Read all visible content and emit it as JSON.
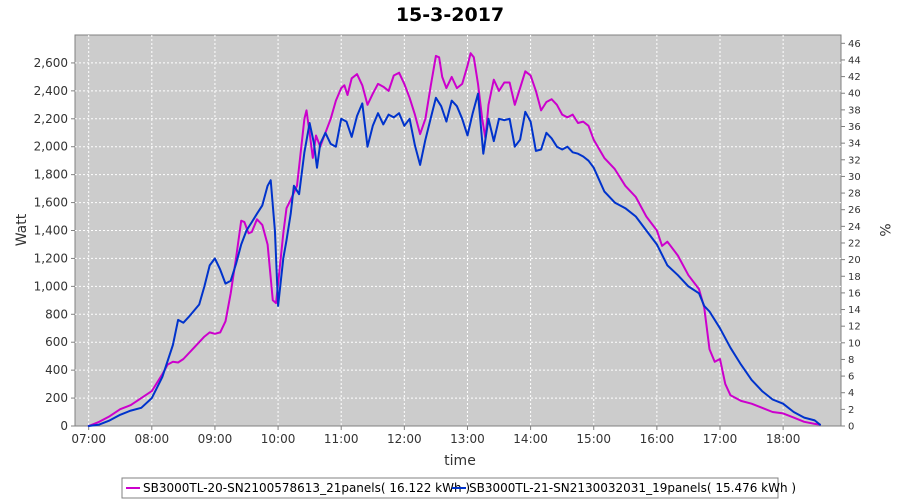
{
  "chart_data": {
    "type": "line",
    "title": "15-3-2017",
    "xlabel": "time",
    "ylabel": "Watt",
    "y2label": "%",
    "x_tick_labels": [
      "07:00",
      "08:00",
      "09:00",
      "10:00",
      "11:00",
      "12:00",
      "13:00",
      "14:00",
      "15:00",
      "16:00",
      "17:00",
      "18:00"
    ],
    "x_range": [
      "06:47",
      "18:55"
    ],
    "ylim": [
      0,
      2800
    ],
    "y_tick_labels": [
      "0",
      "200",
      "400",
      "600",
      "800",
      "1,000",
      "1,200",
      "1,400",
      "1,600",
      "1,800",
      "2,000",
      "2,200",
      "2,400",
      "2,600"
    ],
    "y2lim": [
      0,
      47
    ],
    "y2_tick_labels": [
      "0",
      "2",
      "4",
      "6",
      "8",
      "10",
      "12",
      "14",
      "16",
      "18",
      "20",
      "22",
      "24",
      "26",
      "28",
      "30",
      "32",
      "34",
      "36",
      "38",
      "40",
      "42",
      "44",
      "46"
    ],
    "grid": true,
    "legend_placement": "bottom",
    "plot_background": "#cccccc",
    "series": [
      {
        "name": "SB3000TL-20-SN2100578613_21panels( 16.122 kWh )",
        "color": "#cc00cc",
        "points": [
          [
            "07:00",
            0
          ],
          [
            "07:10",
            30
          ],
          [
            "07:20",
            70
          ],
          [
            "07:30",
            120
          ],
          [
            "07:40",
            150
          ],
          [
            "07:50",
            200
          ],
          [
            "08:00",
            250
          ],
          [
            "08:10",
            370
          ],
          [
            "08:15",
            440
          ],
          [
            "08:20",
            460
          ],
          [
            "08:25",
            455
          ],
          [
            "08:30",
            480
          ],
          [
            "08:40",
            560
          ],
          [
            "08:50",
            640
          ],
          [
            "08:55",
            670
          ],
          [
            "09:00",
            660
          ],
          [
            "09:05",
            670
          ],
          [
            "09:10",
            750
          ],
          [
            "09:15",
            950
          ],
          [
            "09:20",
            1200
          ],
          [
            "09:25",
            1470
          ],
          [
            "09:28",
            1460
          ],
          [
            "09:32",
            1380
          ],
          [
            "09:35",
            1390
          ],
          [
            "09:40",
            1480
          ],
          [
            "09:45",
            1440
          ],
          [
            "09:50",
            1300
          ],
          [
            "09:55",
            900
          ],
          [
            "09:58",
            880
          ],
          [
            "10:00",
            1020
          ],
          [
            "10:05",
            1380
          ],
          [
            "10:08",
            1560
          ],
          [
            "10:12",
            1620
          ],
          [
            "10:18",
            1720
          ],
          [
            "10:25",
            2200
          ],
          [
            "10:27",
            2260
          ],
          [
            "10:30",
            2100
          ],
          [
            "10:33",
            1920
          ],
          [
            "10:36",
            2080
          ],
          [
            "10:40",
            2000
          ],
          [
            "10:45",
            2100
          ],
          [
            "10:50",
            2200
          ],
          [
            "10:55",
            2330
          ],
          [
            "11:00",
            2420
          ],
          [
            "11:03",
            2440
          ],
          [
            "11:06",
            2370
          ],
          [
            "11:10",
            2490
          ],
          [
            "11:15",
            2520
          ],
          [
            "11:20",
            2440
          ],
          [
            "11:25",
            2300
          ],
          [
            "11:30",
            2380
          ],
          [
            "11:35",
            2450
          ],
          [
            "11:40",
            2430
          ],
          [
            "11:45",
            2400
          ],
          [
            "11:50",
            2510
          ],
          [
            "11:55",
            2530
          ],
          [
            "12:00",
            2450
          ],
          [
            "12:05",
            2350
          ],
          [
            "12:10",
            2230
          ],
          [
            "12:15",
            2090
          ],
          [
            "12:20",
            2200
          ],
          [
            "12:25",
            2430
          ],
          [
            "12:30",
            2650
          ],
          [
            "12:33",
            2640
          ],
          [
            "12:36",
            2500
          ],
          [
            "12:40",
            2420
          ],
          [
            "12:45",
            2500
          ],
          [
            "12:50",
            2420
          ],
          [
            "12:55",
            2450
          ],
          [
            "13:00",
            2580
          ],
          [
            "13:03",
            2670
          ],
          [
            "13:06",
            2640
          ],
          [
            "13:10",
            2450
          ],
          [
            "13:14",
            2200
          ],
          [
            "13:17",
            2060
          ],
          [
            "13:20",
            2300
          ],
          [
            "13:25",
            2480
          ],
          [
            "13:30",
            2400
          ],
          [
            "13:35",
            2460
          ],
          [
            "13:40",
            2460
          ],
          [
            "13:45",
            2300
          ],
          [
            "13:50",
            2420
          ],
          [
            "13:55",
            2540
          ],
          [
            "14:00",
            2510
          ],
          [
            "14:05",
            2400
          ],
          [
            "14:10",
            2260
          ],
          [
            "14:15",
            2320
          ],
          [
            "14:20",
            2340
          ],
          [
            "14:25",
            2300
          ],
          [
            "14:30",
            2230
          ],
          [
            "14:35",
            2210
          ],
          [
            "14:40",
            2230
          ],
          [
            "14:45",
            2170
          ],
          [
            "14:50",
            2180
          ],
          [
            "14:55",
            2150
          ],
          [
            "15:00",
            2050
          ],
          [
            "15:10",
            1920
          ],
          [
            "15:20",
            1840
          ],
          [
            "15:30",
            1720
          ],
          [
            "15:40",
            1640
          ],
          [
            "15:50",
            1500
          ],
          [
            "16:00",
            1400
          ],
          [
            "16:05",
            1290
          ],
          [
            "16:10",
            1320
          ],
          [
            "16:20",
            1220
          ],
          [
            "16:30",
            1080
          ],
          [
            "16:40",
            980
          ],
          [
            "16:45",
            850
          ],
          [
            "16:50",
            550
          ],
          [
            "16:55",
            460
          ],
          [
            "17:00",
            480
          ],
          [
            "17:05",
            300
          ],
          [
            "17:10",
            220
          ],
          [
            "17:20",
            180
          ],
          [
            "17:30",
            160
          ],
          [
            "17:40",
            130
          ],
          [
            "17:50",
            100
          ],
          [
            "18:00",
            90
          ],
          [
            "18:10",
            60
          ],
          [
            "18:20",
            30
          ],
          [
            "18:30",
            15
          ],
          [
            "18:35",
            10
          ]
        ]
      },
      {
        "name": "SB3000TL-21-SN2130032031_19panels( 15.476 kWh )",
        "color": "#0033cc",
        "points": [
          [
            "07:00",
            0
          ],
          [
            "07:10",
            10
          ],
          [
            "07:20",
            40
          ],
          [
            "07:30",
            80
          ],
          [
            "07:40",
            110
          ],
          [
            "07:50",
            130
          ],
          [
            "08:00",
            200
          ],
          [
            "08:10",
            350
          ],
          [
            "08:20",
            580
          ],
          [
            "08:25",
            760
          ],
          [
            "08:30",
            740
          ],
          [
            "08:35",
            780
          ],
          [
            "08:45",
            870
          ],
          [
            "08:50",
            1000
          ],
          [
            "08:55",
            1150
          ],
          [
            "09:00",
            1200
          ],
          [
            "09:05",
            1120
          ],
          [
            "09:10",
            1020
          ],
          [
            "09:15",
            1040
          ],
          [
            "09:20",
            1160
          ],
          [
            "09:25",
            1300
          ],
          [
            "09:30",
            1400
          ],
          [
            "09:35",
            1460
          ],
          [
            "09:40",
            1520
          ],
          [
            "09:45",
            1580
          ],
          [
            "09:50",
            1720
          ],
          [
            "09:53",
            1760
          ],
          [
            "09:57",
            1400
          ],
          [
            "10:00",
            860
          ],
          [
            "10:05",
            1200
          ],
          [
            "10:08",
            1330
          ],
          [
            "10:12",
            1520
          ],
          [
            "10:15",
            1720
          ],
          [
            "10:20",
            1660
          ],
          [
            "10:25",
            1960
          ],
          [
            "10:30",
            2170
          ],
          [
            "10:34",
            2030
          ],
          [
            "10:37",
            1850
          ],
          [
            "10:40",
            2020
          ],
          [
            "10:45",
            2100
          ],
          [
            "10:50",
            2020
          ],
          [
            "10:55",
            2000
          ],
          [
            "11:00",
            2200
          ],
          [
            "11:05",
            2180
          ],
          [
            "11:10",
            2070
          ],
          [
            "11:15",
            2220
          ],
          [
            "11:20",
            2310
          ],
          [
            "11:25",
            2000
          ],
          [
            "11:30",
            2150
          ],
          [
            "11:35",
            2240
          ],
          [
            "11:40",
            2160
          ],
          [
            "11:45",
            2230
          ],
          [
            "11:50",
            2210
          ],
          [
            "11:55",
            2240
          ],
          [
            "12:00",
            2150
          ],
          [
            "12:05",
            2200
          ],
          [
            "12:10",
            2010
          ],
          [
            "12:15",
            1870
          ],
          [
            "12:20",
            2050
          ],
          [
            "12:25",
            2200
          ],
          [
            "12:30",
            2350
          ],
          [
            "12:35",
            2290
          ],
          [
            "12:40",
            2180
          ],
          [
            "12:45",
            2330
          ],
          [
            "12:50",
            2290
          ],
          [
            "12:55",
            2200
          ],
          [
            "13:00",
            2080
          ],
          [
            "13:05",
            2240
          ],
          [
            "13:10",
            2380
          ],
          [
            "13:15",
            1950
          ],
          [
            "13:20",
            2200
          ],
          [
            "13:25",
            2040
          ],
          [
            "13:30",
            2200
          ],
          [
            "13:35",
            2190
          ],
          [
            "13:40",
            2200
          ],
          [
            "13:45",
            2000
          ],
          [
            "13:50",
            2050
          ],
          [
            "13:55",
            2250
          ],
          [
            "14:00",
            2180
          ],
          [
            "14:05",
            1970
          ],
          [
            "14:10",
            1980
          ],
          [
            "14:15",
            2100
          ],
          [
            "14:20",
            2060
          ],
          [
            "14:25",
            2000
          ],
          [
            "14:30",
            1980
          ],
          [
            "14:35",
            2000
          ],
          [
            "14:40",
            1960
          ],
          [
            "14:45",
            1950
          ],
          [
            "14:50",
            1930
          ],
          [
            "14:55",
            1900
          ],
          [
            "15:00",
            1850
          ],
          [
            "15:10",
            1680
          ],
          [
            "15:20",
            1600
          ],
          [
            "15:30",
            1560
          ],
          [
            "15:40",
            1500
          ],
          [
            "15:50",
            1400
          ],
          [
            "16:00",
            1300
          ],
          [
            "16:10",
            1150
          ],
          [
            "16:20",
            1080
          ],
          [
            "16:30",
            1000
          ],
          [
            "16:40",
            950
          ],
          [
            "16:45",
            860
          ],
          [
            "16:50",
            820
          ],
          [
            "17:00",
            700
          ],
          [
            "17:10",
            560
          ],
          [
            "17:20",
            440
          ],
          [
            "17:30",
            330
          ],
          [
            "17:40",
            250
          ],
          [
            "17:50",
            190
          ],
          [
            "18:00",
            160
          ],
          [
            "18:10",
            100
          ],
          [
            "18:20",
            60
          ],
          [
            "18:30",
            40
          ],
          [
            "18:35",
            10
          ]
        ]
      }
    ]
  }
}
